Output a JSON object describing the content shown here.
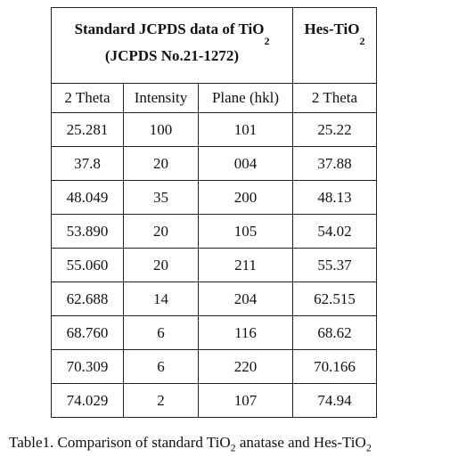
{
  "header": {
    "title": "Standard JCPDS data of TiO",
    "title_sub": "2",
    "reference": "(JCPDS No.21-1272)",
    "right_title": "Hes-TiO",
    "right_sub": "2"
  },
  "columns": [
    "2 Theta",
    "Intensity",
    "Plane (hkl)",
    "2 Theta"
  ],
  "rows": [
    [
      "25.281",
      "100",
      "101",
      "25.22"
    ],
    [
      "37.8",
      "20",
      "004",
      "37.88"
    ],
    [
      "48.049",
      "35",
      "200",
      "48.13"
    ],
    [
      "53.890",
      "20",
      "105",
      "54.02"
    ],
    [
      "55.060",
      "20",
      "211",
      "55.37"
    ],
    [
      "62.688",
      "14",
      "204",
      "62.515"
    ],
    [
      "68.760",
      "6",
      "116",
      "68.62"
    ],
    [
      "70.309",
      "6",
      "220",
      "70.166"
    ],
    [
      "74.029",
      "2",
      "107",
      "74.94"
    ]
  ],
  "caption": {
    "text": "Table1. Comparison of standard TiO",
    "sub": "2",
    "rest": " anatase and Hes-TiO",
    "sub2": "2"
  }
}
